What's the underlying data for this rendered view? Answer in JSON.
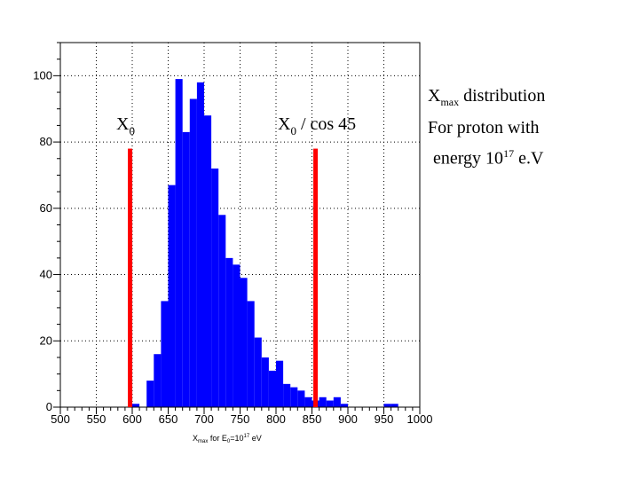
{
  "chart_data": {
    "type": "histogram",
    "title_fragment": "F",
    "x": [
      600,
      610,
      620,
      630,
      640,
      650,
      660,
      670,
      680,
      690,
      700,
      710,
      720,
      730,
      740,
      750,
      760,
      770,
      780,
      790,
      800,
      810,
      820,
      830,
      840,
      850,
      860,
      870,
      880,
      890,
      950,
      960
    ],
    "bin_width": 10,
    "values": [
      1,
      0,
      8,
      16,
      32,
      67,
      99,
      83,
      93,
      98,
      88,
      72,
      58,
      45,
      43,
      39,
      32,
      21,
      15,
      11,
      14,
      7,
      6,
      5,
      3,
      2,
      3,
      2,
      3,
      1,
      1,
      1
    ],
    "xlim": [
      500,
      1000
    ],
    "ylim": [
      0,
      110
    ],
    "x_ticks": [
      "500",
      "550",
      "600",
      "650",
      "700",
      "750",
      "800",
      "850",
      "900",
      "950",
      "1000"
    ],
    "y_ticks": [
      "0",
      "20",
      "40",
      "60",
      "80",
      "100"
    ],
    "xlabel": {
      "main": "X",
      "sub1": "max",
      "mid": " for E",
      "sub2": "0",
      "mid2": "=10",
      "sup": "17",
      "end": " eV"
    },
    "grid": true,
    "bar_color": "#0000ff",
    "markers": [
      {
        "x": 597,
        "y": 78,
        "color": "#ff0000",
        "label_main": "X",
        "label_sub": "0",
        "label_rest": ""
      },
      {
        "x": 855,
        "y": 78,
        "color": "#ff0000",
        "label_main": "X",
        "label_sub": "0",
        "label_rest": " / cos 45"
      }
    ]
  },
  "note": {
    "line1_main": "X",
    "line1_sub": "max",
    "line1_rest": " distribution",
    "line2": "For proton with",
    "line3_pre": "energy  10",
    "line3_sup": "17",
    "line3_post": " e.V"
  }
}
